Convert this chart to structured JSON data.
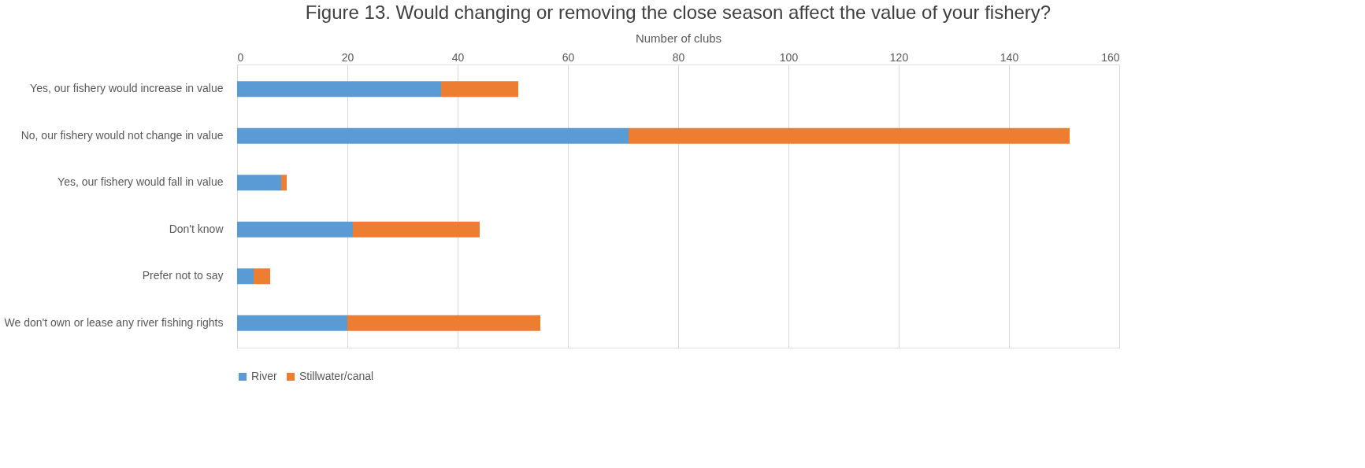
{
  "chart_data": {
    "type": "bar",
    "orientation": "horizontal",
    "stacked": true,
    "title": "Figure 13. Would changing or removing the close season affect the value of your fishery?",
    "xlabel": "Number of clubs",
    "categories": [
      "Yes, our fishery would increase in value",
      "No, our fishery would not change in value",
      "Yes, our fishery would fall in value",
      "Don't know",
      "Prefer not to say",
      "We don't own or lease any river fishing rights"
    ],
    "series": [
      {
        "name": "River",
        "color": "#5b9bd5",
        "values": [
          37,
          71,
          8,
          21,
          3,
          20
        ]
      },
      {
        "name": "Stillwater/canal",
        "color": "#ed7d31",
        "values": [
          14,
          80,
          1,
          23,
          3,
          35
        ]
      }
    ],
    "xlim": [
      0,
      160
    ],
    "xticks": [
      0,
      20,
      40,
      60,
      80,
      100,
      120,
      140,
      160
    ],
    "grid": "x",
    "legend": "bottom"
  }
}
